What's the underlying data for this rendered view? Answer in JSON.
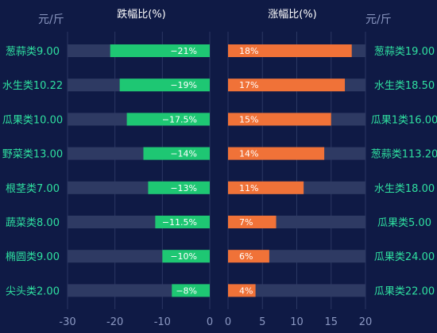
{
  "units": {
    "left": "元/斤",
    "right": "元/斤"
  },
  "chart_data": [
    {
      "type": "bar",
      "title": "跌幅比(%)",
      "orientation": "horizontal",
      "xlim": [
        -30,
        0
      ],
      "xticks": [
        -30,
        -20,
        -10,
        0
      ],
      "categories": [
        "葱蒜类9.00",
        "水生类10.22",
        "瓜果类10.00",
        "野菜类13.00",
        "根茎类7.00",
        "蔬菜类8.00",
        "椭圆类9.00",
        "尖头类2.00"
      ],
      "values": [
        -21,
        -19,
        -17.5,
        -14,
        -13,
        -11.5,
        -10,
        -8
      ],
      "labels": [
        "−21%",
        "−19%",
        "−17.5%",
        "−14%",
        "−13%",
        "−11.5%",
        "−10%",
        "−8%"
      ],
      "bar_color": "#1ec773",
      "track_color": "#2e3a63"
    },
    {
      "type": "bar",
      "title": "涨幅比(%)",
      "orientation": "horizontal",
      "xlim": [
        0,
        20
      ],
      "xticks": [
        0,
        5,
        10,
        15,
        20
      ],
      "categories": [
        "葱蒜类19.00",
        "水生类18.50",
        "瓜果1类16.00",
        "葱蒜类113.20",
        "水生类18.00",
        "瓜果类5.00",
        "瓜果类24.00",
        "瓜果类22.00"
      ],
      "values": [
        18,
        17,
        15,
        14,
        11,
        7,
        6,
        4
      ],
      "labels": [
        "18%",
        "17%",
        "15%",
        "14%",
        "11%",
        "7%",
        "6%",
        "4%"
      ],
      "bar_color": "#f07238",
      "track_color": "#2e3a63"
    }
  ]
}
